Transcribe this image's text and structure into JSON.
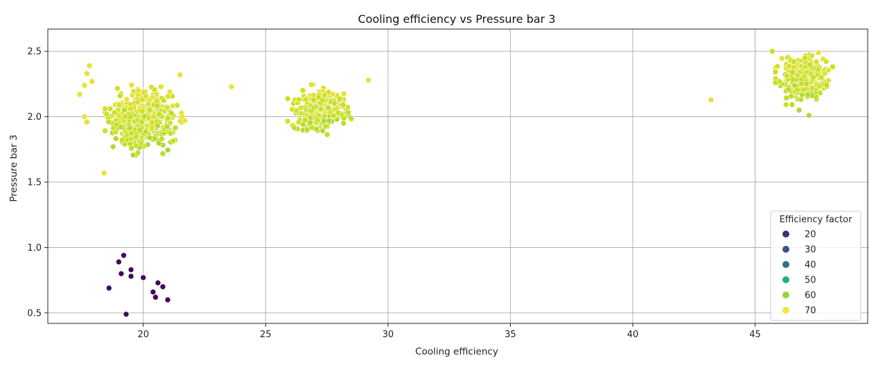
{
  "chart_data": {
    "type": "scatter",
    "title": "Cooling efficiency vs Pressure bar 3",
    "xlabel": "Cooling efficiency",
    "ylabel": "Pressure bar 3",
    "xlim": [
      16.1,
      49.6
    ],
    "ylim": [
      0.42,
      2.67
    ],
    "xticks": [
      20,
      25,
      30,
      35,
      40,
      45
    ],
    "yticks": [
      0.5,
      1.0,
      1.5,
      2.0,
      2.5
    ],
    "xtick_labels": [
      "20",
      "25",
      "30",
      "35",
      "40",
      "45"
    ],
    "ytick_labels": [
      "0.5",
      "1.0",
      "1.5",
      "2.0",
      "2.5"
    ],
    "grid": true,
    "legend": {
      "title": "Efficiency factor",
      "placement": "lower-right",
      "entries": [
        {
          "label": "20",
          "color": "#472d7b"
        },
        {
          "label": "30",
          "color": "#3b528b"
        },
        {
          "label": "40",
          "color": "#2c728e"
        },
        {
          "label": "50",
          "color": "#28ae80"
        },
        {
          "label": "60",
          "color": "#9ad33f"
        },
        {
          "label": "70",
          "color": "#f6e33f"
        }
      ]
    },
    "colormap": [
      "#440154",
      "#472d7b",
      "#3b528b",
      "#2c728e",
      "#21918c",
      "#28ae80",
      "#5ec962",
      "#9ad33f",
      "#c8e020",
      "#f6e33f"
    ],
    "hue_range": [
      14,
      72
    ],
    "outliers": [
      {
        "x": 18.6,
        "y": 0.69,
        "hue": 15
      },
      {
        "x": 19.0,
        "y": 0.89,
        "hue": 15
      },
      {
        "x": 19.2,
        "y": 0.94,
        "hue": 15
      },
      {
        "x": 19.1,
        "y": 0.8,
        "hue": 15
      },
      {
        "x": 19.5,
        "y": 0.83,
        "hue": 15
      },
      {
        "x": 19.5,
        "y": 0.78,
        "hue": 15
      },
      {
        "x": 20.0,
        "y": 0.77,
        "hue": 15
      },
      {
        "x": 19.3,
        "y": 0.49,
        "hue": 15
      },
      {
        "x": 20.4,
        "y": 0.66,
        "hue": 15
      },
      {
        "x": 20.6,
        "y": 0.73,
        "hue": 15
      },
      {
        "x": 20.8,
        "y": 0.7,
        "hue": 15
      },
      {
        "x": 20.5,
        "y": 0.62,
        "hue": 15
      },
      {
        "x": 21.0,
        "y": 0.6,
        "hue": 15
      },
      {
        "x": 18.4,
        "y": 1.57,
        "hue": 70
      },
      {
        "x": 17.8,
        "y": 2.39,
        "hue": 70
      },
      {
        "x": 17.7,
        "y": 2.33,
        "hue": 70
      },
      {
        "x": 17.9,
        "y": 2.27,
        "hue": 70
      },
      {
        "x": 17.6,
        "y": 2.24,
        "hue": 70
      },
      {
        "x": 17.4,
        "y": 2.17,
        "hue": 70
      },
      {
        "x": 17.6,
        "y": 2.0,
        "hue": 70
      },
      {
        "x": 17.7,
        "y": 1.96,
        "hue": 70
      },
      {
        "x": 21.5,
        "y": 2.32,
        "hue": 70
      },
      {
        "x": 21.6,
        "y": 2.0,
        "hue": 70
      },
      {
        "x": 21.7,
        "y": 1.97,
        "hue": 70
      },
      {
        "x": 23.6,
        "y": 2.23,
        "hue": 70
      },
      {
        "x": 29.2,
        "y": 2.28,
        "hue": 70
      },
      {
        "x": 43.2,
        "y": 2.13,
        "hue": 70
      },
      {
        "x": 45.7,
        "y": 2.5,
        "hue": 65
      },
      {
        "x": 47.2,
        "y": 2.01,
        "hue": 62
      },
      {
        "x": 46.8,
        "y": 2.05,
        "hue": 62
      }
    ],
    "clusters": [
      {
        "cx": 20.0,
        "cy": 1.98,
        "sx": 0.6,
        "sy": 0.105,
        "n": 480,
        "hue_lo": 60,
        "hue_hi": 72,
        "seed": 7
      },
      {
        "cx": 27.2,
        "cy": 2.05,
        "sx": 0.5,
        "sy": 0.075,
        "n": 360,
        "hue_lo": 60,
        "hue_hi": 72,
        "seed": 19
      },
      {
        "cx": 47.0,
        "cy": 2.3,
        "sx": 0.45,
        "sy": 0.08,
        "n": 330,
        "hue_lo": 60,
        "hue_hi": 72,
        "seed": 31
      }
    ]
  }
}
